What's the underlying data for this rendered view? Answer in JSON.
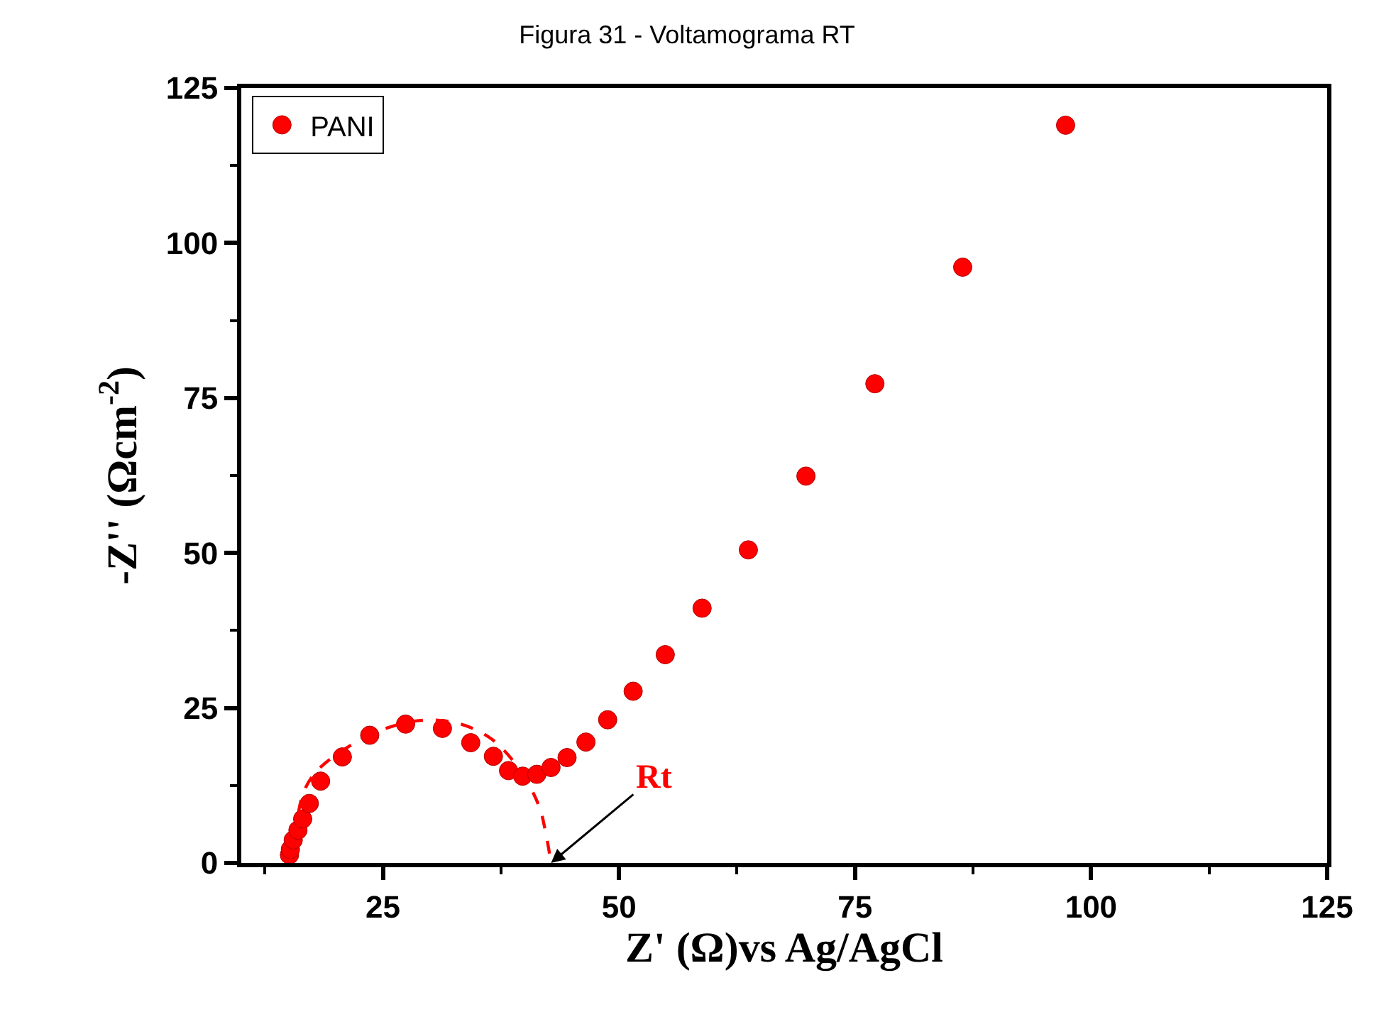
{
  "chart_data": {
    "type": "scatter",
    "title": "Figura 31 - Voltamograma RT",
    "xlabel": "Z' (Ω)vs Ag/AgCl",
    "ylabel": "-Z'' (Ωcm$^{-2}$)",
    "xlim": [
      10,
      125
    ],
    "xticks": [
      25,
      50,
      75,
      100,
      125
    ],
    "ylim": [
      0,
      125
    ],
    "yticks": [
      0,
      25,
      50,
      75,
      100,
      125
    ],
    "legend": "top left",
    "series": [
      {
        "name": "PANI",
        "marker": "circle",
        "color": "#ff0000",
        "x": [
          15.1,
          15.2,
          15.5,
          16.0,
          16.5,
          17.2,
          18.4,
          20.7,
          23.6,
          27.4,
          31.3,
          34.3,
          36.7,
          38.3,
          39.8,
          41.3,
          42.8,
          44.5,
          46.5,
          48.8,
          51.5,
          54.9,
          58.8,
          63.7,
          69.8,
          77.1,
          86.4,
          97.3
        ],
        "values": [
          1.3,
          2.2,
          3.7,
          5.3,
          7.1,
          9.6,
          13.2,
          17.1,
          20.6,
          22.4,
          21.7,
          19.4,
          17.2,
          14.9,
          14.0,
          14.3,
          15.4,
          17.0,
          19.5,
          23.1,
          27.7,
          33.6,
          41.1,
          50.5,
          62.4,
          77.3,
          96.1,
          119.0
        ]
      },
      {
        "type": "line",
        "line_style": "dashed",
        "marker": "none",
        "color": "#ff0000",
        "x": [
          15.1,
          15.5,
          16.6,
          18.1,
          21.6,
          25.3,
          29,
          33,
          36.5,
          39.5,
          41.5,
          42.2,
          42.8
        ],
        "values": [
          0,
          3,
          11.4,
          15,
          19,
          21.7,
          23,
          22.5,
          20,
          15,
          9.3,
          5.2,
          0
        ]
      }
    ],
    "annotations": [
      {
        "text": "Rt",
        "x": 42.8,
        "y": 0
      }
    ]
  }
}
